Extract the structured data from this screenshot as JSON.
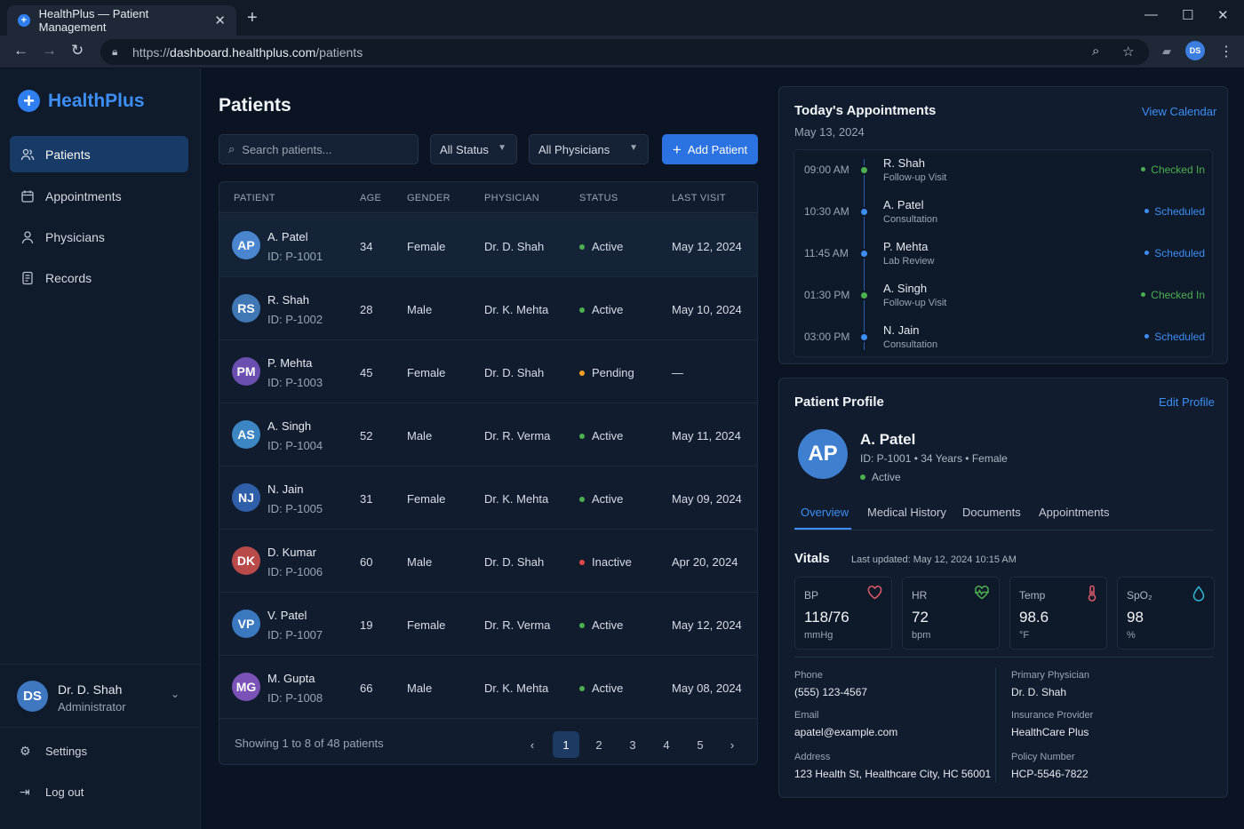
{
  "browser": {
    "tab_title": "HealthPlus — Patient Management",
    "url_scheme": "https://",
    "url_host": "dashboard.healthplus.com",
    "url_path": "/patients",
    "profile_initials": "DS"
  },
  "sidebar": {
    "brand": "HealthPlus",
    "items": [
      {
        "label": "Patients",
        "icon": "users-icon",
        "active": true
      },
      {
        "label": "Appointments",
        "icon": "calendar-icon",
        "active": false
      },
      {
        "label": "Physicians",
        "icon": "user-icon",
        "active": false
      },
      {
        "label": "Records",
        "icon": "document-icon",
        "active": false
      }
    ],
    "user": {
      "initials": "DS",
      "name": "Dr. D. Shah",
      "role": "Administrator"
    },
    "settings_label": "Settings",
    "logout_label": "Log out"
  },
  "main": {
    "title": "Patients",
    "search_placeholder": "Search patients...",
    "status_filter": "All Status",
    "physician_filter": "All Physicians",
    "add_button": "Add Patient",
    "columns": [
      "PATIENT",
      "AGE",
      "GENDER",
      "PHYSICIAN",
      "STATUS",
      "LAST VISIT"
    ],
    "patients": [
      {
        "initials": "AP",
        "name": "A. Patel",
        "id": "ID: P-1001",
        "age": "34",
        "gender": "Female",
        "physician": "Dr. D. Shah",
        "status": "Active",
        "last_visit": "May 12, 2024",
        "avatar_color": "#4a86cf"
      },
      {
        "initials": "RS",
        "name": "R. Shah",
        "id": "ID: P-1002",
        "age": "28",
        "gender": "Male",
        "physician": "Dr. K. Mehta",
        "status": "Active",
        "last_visit": "May 10, 2024",
        "avatar_color": "#3f78b5"
      },
      {
        "initials": "PM",
        "name": "P. Mehta",
        "id": "ID: P-1003",
        "age": "45",
        "gender": "Female",
        "physician": "Dr. D. Shah",
        "status": "Pending",
        "last_visit": "—",
        "avatar_color": "#6a4fb0"
      },
      {
        "initials": "AS",
        "name": "A. Singh",
        "id": "ID: P-1004",
        "age": "52",
        "gender": "Male",
        "physician": "Dr. R. Verma",
        "status": "Active",
        "last_visit": "May 11, 2024",
        "avatar_color": "#3c86c4"
      },
      {
        "initials": "NJ",
        "name": "N. Jain",
        "id": "ID: P-1005",
        "age": "31",
        "gender": "Female",
        "physician": "Dr. K. Mehta",
        "status": "Active",
        "last_visit": "May 09, 2024",
        "avatar_color": "#2f5fa8"
      },
      {
        "initials": "DK",
        "name": "D. Kumar",
        "id": "ID: P-1006",
        "age": "60",
        "gender": "Male",
        "physician": "Dr. D. Shah",
        "status": "Inactive",
        "last_visit": "Apr 20, 2024",
        "avatar_color": "#b84a4a"
      },
      {
        "initials": "VP",
        "name": "V. Patel",
        "id": "ID: P-1007",
        "age": "19",
        "gender": "Female",
        "physician": "Dr. R. Verma",
        "status": "Active",
        "last_visit": "May 12, 2024",
        "avatar_color": "#3a78c0"
      },
      {
        "initials": "MG",
        "name": "M. Gupta",
        "id": "ID: P-1008",
        "age": "66",
        "gender": "Male",
        "physician": "Dr. K. Mehta",
        "status": "Active",
        "last_visit": "May 08, 2024",
        "avatar_color": "#7a52b8"
      }
    ],
    "showing": "Showing 1 to 8 of 48 patients",
    "pages": [
      "1",
      "2",
      "3",
      "4",
      "5"
    ],
    "current_page": "1"
  },
  "status_colors": {
    "Active": "#4caf50",
    "Pending": "#f0a020",
    "Inactive": "#e04848",
    "Checked In": "#4caf50",
    "Scheduled": "#3d8ef5"
  },
  "appointments": {
    "title": "Today's Appointments",
    "link": "View Calendar",
    "date": "May 13, 2024",
    "items": [
      {
        "time": "09:00 AM",
        "name": "R. Shah",
        "type": "Follow-up Visit",
        "status": "Checked In"
      },
      {
        "time": "10:30 AM",
        "name": "A. Patel",
        "type": "Consultation",
        "status": "Scheduled"
      },
      {
        "time": "11:45 AM",
        "name": "P. Mehta",
        "type": "Lab Review",
        "status": "Scheduled"
      },
      {
        "time": "01:30 PM",
        "name": "A. Singh",
        "type": "Follow-up Visit",
        "status": "Checked In"
      },
      {
        "time": "03:00 PM",
        "name": "N. Jain",
        "type": "Consultation",
        "status": "Scheduled"
      }
    ]
  },
  "profile": {
    "title": "Patient Profile",
    "edit_link": "Edit Profile",
    "initials": "AP",
    "name": "A. Patel",
    "meta": "ID: P-1001 • 34 Years • Female",
    "status": "Active",
    "tabs": [
      "Overview",
      "Medical History",
      "Documents",
      "Appointments"
    ],
    "vitals_title": "Vitals",
    "vitals_updated": "Last updated: May 12, 2024 10:15 AM",
    "vitals": [
      {
        "label": "BP",
        "value": "118/76",
        "unit": "mmHg",
        "icon": "heart-icon",
        "color": "#e05a6a"
      },
      {
        "label": "HR",
        "value": "72",
        "unit": "bpm",
        "icon": "heartbeat-icon",
        "color": "#4caf50"
      },
      {
        "label": "Temp",
        "value": "98.6",
        "unit": "°F",
        "icon": "thermometer-icon",
        "color": "#e05a6a"
      },
      {
        "label": "SpO₂",
        "value": "98",
        "unit": "%",
        "icon": "droplet-icon",
        "color": "#2fb8d8"
      }
    ],
    "contact": [
      {
        "label": "Phone",
        "value": "(555) 123-4567"
      },
      {
        "label": "Email",
        "value": "apatel@example.com"
      },
      {
        "label": "Address",
        "value": "123 Health St, Healthcare City, HC 56001"
      }
    ],
    "coverage": [
      {
        "label": "Primary Physician",
        "value": "Dr. D. Shah"
      },
      {
        "label": "Insurance Provider",
        "value": "HealthCare Plus"
      },
      {
        "label": "Policy Number",
        "value": "HCP-5546-7822"
      }
    ]
  }
}
